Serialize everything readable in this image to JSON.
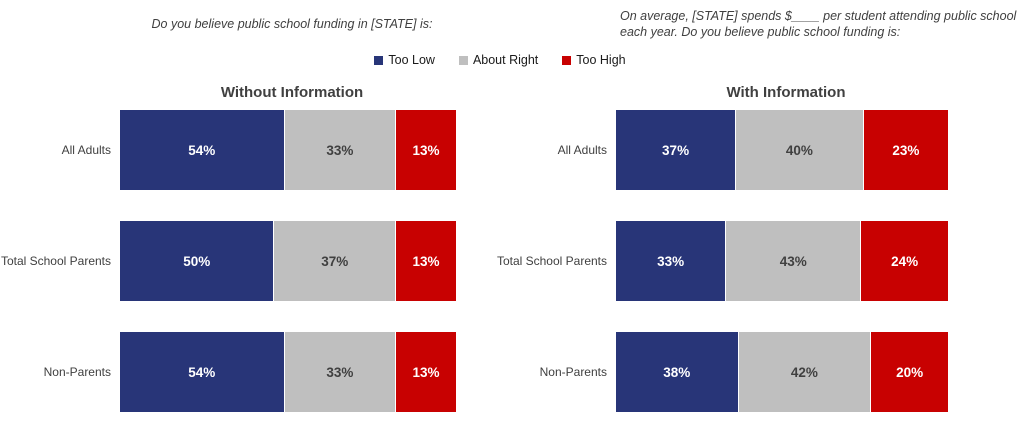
{
  "questions": {
    "left": "Do you believe public school funding in [STATE] is:",
    "right": "On average, [STATE] spends $____ per student attending public school each year. Do you believe public school funding is:"
  },
  "legend": [
    {
      "label": "Too Low",
      "color": "#283578"
    },
    {
      "label": "About Right",
      "color": "#BFBFBF"
    },
    {
      "label": "Too High",
      "color": "#C80101"
    }
  ],
  "colors": {
    "too_low": "#283578",
    "about_right": "#BFBFBF",
    "too_high": "#C80101",
    "text_dark": "#404040"
  },
  "charts": [
    {
      "title": "Without Information",
      "rows": [
        {
          "label": "All Adults",
          "segments": [
            {
              "value": 54,
              "text": "54%"
            },
            {
              "value": 33,
              "text": "33%"
            },
            {
              "value": 13,
              "text": "13%"
            }
          ]
        },
        {
          "label": "Total School Parents",
          "segments": [
            {
              "value": 50,
              "text": "50%"
            },
            {
              "value": 37,
              "text": "37%"
            },
            {
              "value": 13,
              "text": "13%"
            }
          ]
        },
        {
          "label": "Non-Parents",
          "segments": [
            {
              "value": 54,
              "text": "54%"
            },
            {
              "value": 33,
              "text": "33%"
            },
            {
              "value": 13,
              "text": "13%"
            }
          ]
        }
      ]
    },
    {
      "title": "With Information",
      "rows": [
        {
          "label": "All Adults",
          "segments": [
            {
              "value": 37,
              "text": "37%"
            },
            {
              "value": 40,
              "text": "40%"
            },
            {
              "value": 23,
              "text": "23%"
            }
          ]
        },
        {
          "label": "Total School Parents",
          "segments": [
            {
              "value": 33,
              "text": "33%"
            },
            {
              "value": 43,
              "text": "43%"
            },
            {
              "value": 24,
              "text": "24%"
            }
          ]
        },
        {
          "label": "Non-Parents",
          "segments": [
            {
              "value": 38,
              "text": "38%"
            },
            {
              "value": 42,
              "text": "42%"
            },
            {
              "value": 20,
              "text": "20%"
            }
          ]
        }
      ]
    }
  ],
  "chart_data": [
    {
      "type": "bar",
      "orientation": "horizontal",
      "stacked": true,
      "title": "Without Information",
      "question": "Do you believe public school funding in [STATE] is:",
      "categories": [
        "All Adults",
        "Total School Parents",
        "Non-Parents"
      ],
      "series": [
        {
          "name": "Too Low",
          "values": [
            54,
            50,
            54
          ]
        },
        {
          "name": "About Right",
          "values": [
            33,
            37,
            33
          ]
        },
        {
          "name": "Too High",
          "values": [
            13,
            13,
            13
          ]
        }
      ],
      "unit": "%",
      "xlim": [
        0,
        100
      ],
      "grid": false,
      "legend_position": "top",
      "data_labels": true
    },
    {
      "type": "bar",
      "orientation": "horizontal",
      "stacked": true,
      "title": "With Information",
      "question": "On average, [STATE] spends $____ per student attending public school each year. Do you believe public school funding is:",
      "categories": [
        "All Adults",
        "Total School Parents",
        "Non-Parents"
      ],
      "series": [
        {
          "name": "Too Low",
          "values": [
            37,
            33,
            38
          ]
        },
        {
          "name": "About Right",
          "values": [
            40,
            43,
            42
          ]
        },
        {
          "name": "Too High",
          "values": [
            23,
            24,
            20
          ]
        }
      ],
      "unit": "%",
      "xlim": [
        0,
        100
      ],
      "grid": false,
      "legend_position": "top",
      "data_labels": true
    }
  ]
}
